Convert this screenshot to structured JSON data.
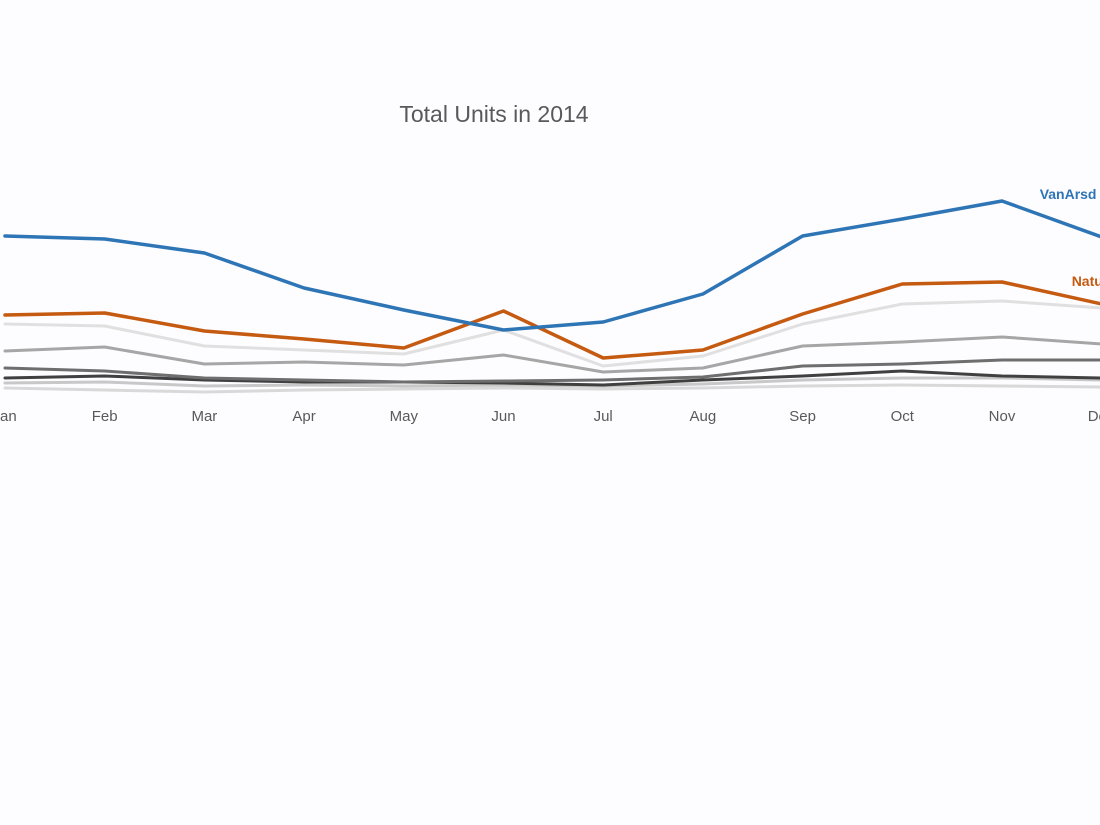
{
  "chart_data": {
    "type": "line",
    "title": "Total Units in 2014",
    "categories": [
      "an",
      "Feb",
      "Mar",
      "Apr",
      "May",
      "Jun",
      "Jul",
      "Aug",
      "Sep",
      "Oct",
      "Nov",
      "De"
    ],
    "ylim": [
      0,
      200
    ],
    "series": [
      {
        "color": "#d9d9d9",
        "values": [
          4,
          2,
          0,
          2,
          3,
          4,
          3,
          4,
          6,
          7,
          6,
          5
        ]
      },
      {
        "color": "#c8c8c8",
        "values": [
          9,
          10,
          6,
          7,
          6,
          7,
          6,
          8,
          12,
          14,
          14,
          12
        ]
      },
      {
        "color": "#404040",
        "values": [
          14,
          16,
          12,
          10,
          10,
          9,
          7,
          12,
          16,
          21,
          16,
          14
        ]
      },
      {
        "color": "#6e6e6e",
        "values": [
          24,
          21,
          14,
          12,
          10,
          11,
          12,
          15,
          26,
          28,
          32,
          32
        ]
      },
      {
        "color": "#a6a6a6",
        "values": [
          41,
          45,
          28,
          30,
          27,
          37,
          20,
          24,
          46,
          50,
          55,
          48
        ]
      },
      {
        "color": "#e0e0e0",
        "values": [
          68,
          66,
          46,
          42,
          38,
          62,
          26,
          36,
          68,
          88,
          91,
          84
        ]
      },
      {
        "name": "Natu",
        "color": "#c55a11",
        "values": [
          77,
          79,
          61,
          53,
          44,
          81,
          34,
          42,
          78,
          108,
          110,
          88
        ]
      },
      {
        "name": "VanArsd",
        "color": "#2e75b6",
        "values": [
          156,
          153,
          139,
          104,
          82,
          62,
          70,
          98,
          156,
          173,
          191,
          155
        ]
      }
    ]
  }
}
